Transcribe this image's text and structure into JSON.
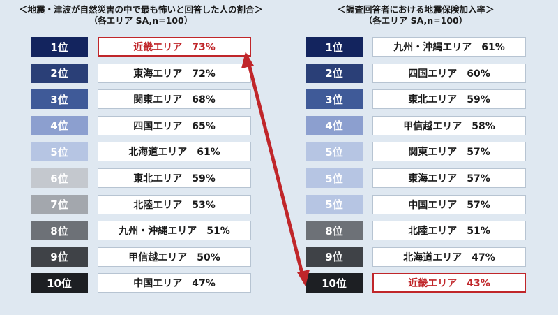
{
  "left": {
    "title": "＜地震・津波が自然災害の中で最も怖いと回答した人の割合＞",
    "subtitle": "（各エリア SA,n=100）",
    "rows": [
      {
        "rank": "1位",
        "label": "近畿エリア　73%",
        "rank_color": "#13245e",
        "highlight": true
      },
      {
        "rank": "2位",
        "label": "東海エリア　72%",
        "rank_color": "#2a3f77",
        "highlight": false
      },
      {
        "rank": "3位",
        "label": "関東エリア　68%",
        "rank_color": "#3f5a98",
        "highlight": false
      },
      {
        "rank": "4位",
        "label": "四国エリア　65%",
        "rank_color": "#8c9fcf",
        "highlight": false
      },
      {
        "rank": "5位",
        "label": "北海道エリア　61%",
        "rank_color": "#b6c5e3",
        "highlight": false
      },
      {
        "rank": "6位",
        "label": "東北エリア　59%",
        "rank_color": "#c4c8ce",
        "highlight": false
      },
      {
        "rank": "7位",
        "label": "北陸エリア　53%",
        "rank_color": "#a3a7ad",
        "highlight": false
      },
      {
        "rank": "8位",
        "label": "九州・沖縄エリア　51%",
        "rank_color": "#6d7177",
        "highlight": false
      },
      {
        "rank": "9位",
        "label": "甲信越エリア　50%",
        "rank_color": "#3f4247",
        "highlight": false
      },
      {
        "rank": "10位",
        "label": "中国エリア　47%",
        "rank_color": "#1d1f23",
        "highlight": false
      }
    ]
  },
  "right": {
    "title": "＜調査回答者における地震保険加入率＞",
    "subtitle": "（各エリア SA,n=100）",
    "rows": [
      {
        "rank": "1位",
        "label": "九州・沖縄エリア　61%",
        "rank_color": "#13245e",
        "highlight": false
      },
      {
        "rank": "2位",
        "label": "四国エリア　60%",
        "rank_color": "#2a3f77",
        "highlight": false
      },
      {
        "rank": "3位",
        "label": "東北エリア　59%",
        "rank_color": "#3f5a98",
        "highlight": false
      },
      {
        "rank": "4位",
        "label": "甲信越エリア　58%",
        "rank_color": "#8c9fcf",
        "highlight": false
      },
      {
        "rank": "5位",
        "label": "関東エリア　57%",
        "rank_color": "#b6c5e3",
        "highlight": false
      },
      {
        "rank": "5位",
        "label": "東海エリア　57%",
        "rank_color": "#b6c5e3",
        "highlight": false
      },
      {
        "rank": "5位",
        "label": "中国エリア　57%",
        "rank_color": "#b6c5e3",
        "highlight": false
      },
      {
        "rank": "8位",
        "label": "北陸エリア　51%",
        "rank_color": "#6d7177",
        "highlight": false
      },
      {
        "rank": "9位",
        "label": "北海道エリア　47%",
        "rank_color": "#3f4247",
        "highlight": false
      },
      {
        "rank": "10位",
        "label": "近畿エリア　43%",
        "rank_color": "#1d1f23",
        "highlight": true
      }
    ]
  },
  "arrow_color": "#c0262a",
  "highlight_color": "#c0262a"
}
